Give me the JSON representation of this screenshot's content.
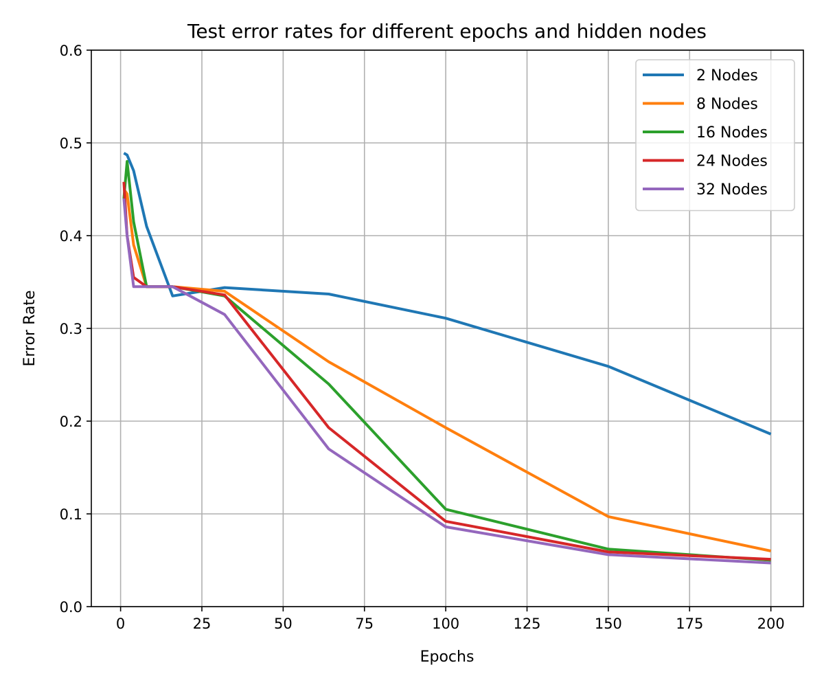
{
  "chart_data": {
    "type": "line",
    "title": "Test error rates for different epochs and hidden nodes",
    "xlabel": "Epochs",
    "ylabel": "Error Rate",
    "xlim": [
      -9,
      210
    ],
    "ylim": [
      0.0,
      0.6
    ],
    "xticks": [
      0,
      25,
      50,
      75,
      100,
      125,
      150,
      175,
      200
    ],
    "xtick_labels": [
      "0",
      "25",
      "50",
      "75",
      "100",
      "125",
      "150",
      "175",
      "200"
    ],
    "yticks": [
      0.0,
      0.1,
      0.2,
      0.3,
      0.4,
      0.5,
      0.6
    ],
    "ytick_labels": [
      "0.0",
      "0.1",
      "0.2",
      "0.3",
      "0.4",
      "0.5",
      "0.6"
    ],
    "grid": true,
    "legend_position": "top-right",
    "series": [
      {
        "name": "2 Nodes",
        "color": "#1f77b4",
        "x": [
          1,
          2,
          4,
          8,
          16,
          32,
          64,
          100,
          150,
          200
        ],
        "y": [
          0.489,
          0.487,
          0.47,
          0.41,
          0.335,
          0.344,
          0.337,
          0.311,
          0.259,
          0.186
        ]
      },
      {
        "name": "8 Nodes",
        "color": "#ff7f0e",
        "x": [
          1,
          2,
          4,
          8,
          16,
          32,
          64,
          100,
          150,
          200
        ],
        "y": [
          0.45,
          0.445,
          0.39,
          0.345,
          0.345,
          0.34,
          0.264,
          0.193,
          0.097,
          0.06
        ]
      },
      {
        "name": "16 Nodes",
        "color": "#2ca02c",
        "x": [
          1,
          2,
          4,
          8,
          16,
          32,
          64,
          100,
          150,
          200
        ],
        "y": [
          0.44,
          0.48,
          0.415,
          0.345,
          0.345,
          0.335,
          0.24,
          0.105,
          0.062,
          0.05
        ]
      },
      {
        "name": "24 Nodes",
        "color": "#d62728",
        "x": [
          1,
          2,
          4,
          8,
          16,
          32,
          64,
          100,
          150,
          200
        ],
        "y": [
          0.458,
          0.4,
          0.355,
          0.345,
          0.345,
          0.336,
          0.193,
          0.092,
          0.059,
          0.051
        ]
      },
      {
        "name": "32 Nodes",
        "color": "#9467bd",
        "x": [
          1,
          2,
          4,
          8,
          16,
          32,
          64,
          100,
          150,
          200
        ],
        "y": [
          0.44,
          0.4,
          0.345,
          0.345,
          0.345,
          0.315,
          0.17,
          0.086,
          0.056,
          0.047
        ]
      }
    ]
  }
}
